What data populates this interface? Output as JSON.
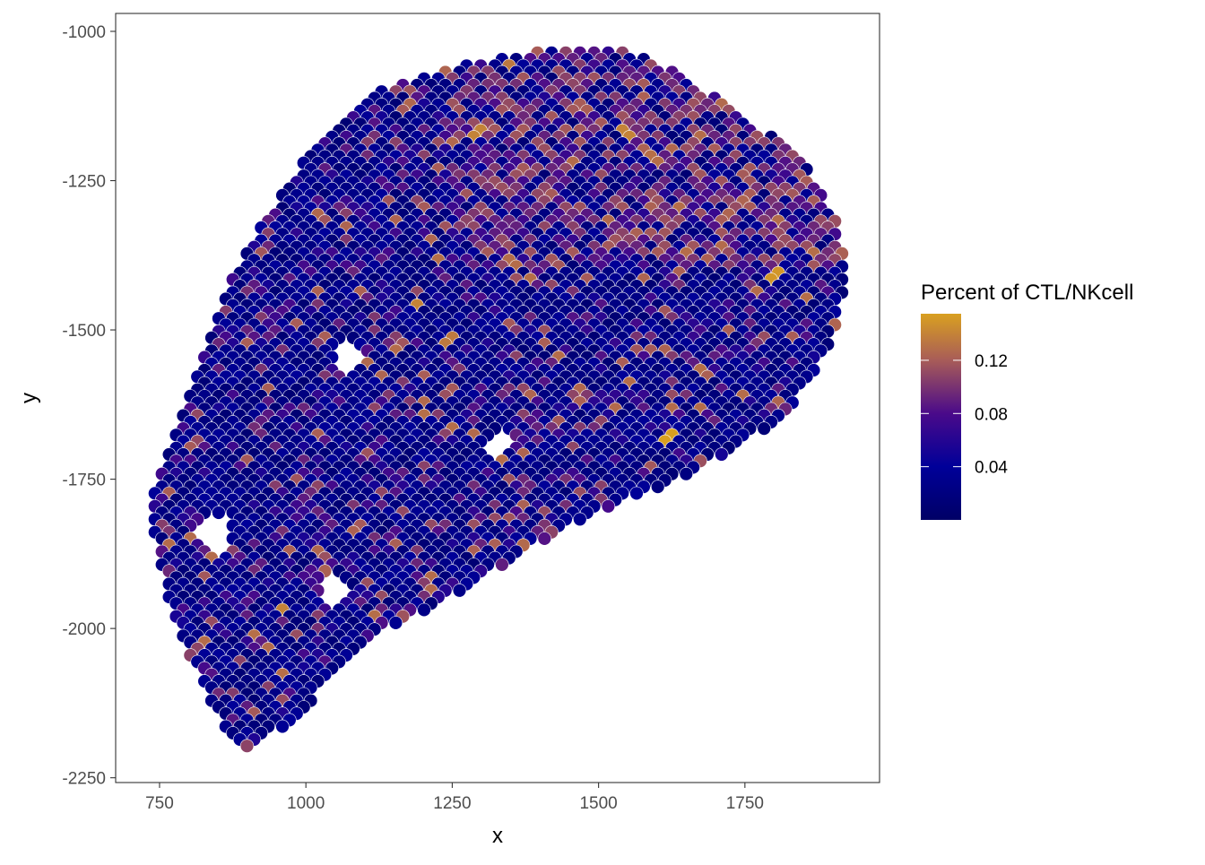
{
  "chart_data": {
    "type": "scatter",
    "xlabel": "x",
    "ylabel": "y",
    "xlim": [
      675,
      1980
    ],
    "ylim": [
      -2258,
      -970
    ],
    "x_ticks": [
      750,
      1000,
      1250,
      1500,
      1750
    ],
    "x_tick_labels": [
      "750",
      "1000",
      "1250",
      "1500",
      "1750"
    ],
    "y_ticks": [
      -1000,
      -1250,
      -1500,
      -1750,
      -2000,
      -2250
    ],
    "y_tick_labels": [
      "-1000",
      "-1250",
      "-1500",
      "-1750",
      "-2000",
      "-2250"
    ],
    "grid": false,
    "legend": {
      "title": "Percent of CTL/NKcell",
      "position": "right",
      "type": "colorbar",
      "range": [
        0.0,
        0.155
      ],
      "ticks": [
        0.04,
        0.08,
        0.12
      ],
      "tick_labels": [
        "0.04",
        "0.08",
        "0.12"
      ],
      "color_stops": [
        {
          "value": 0.0,
          "color": "#000066"
        },
        {
          "value": 0.04,
          "color": "#000099"
        },
        {
          "value": 0.08,
          "color": "#4a0a8a"
        },
        {
          "value": 0.12,
          "color": "#a85c58"
        },
        {
          "value": 0.155,
          "color": "#d9a020"
        }
      ]
    },
    "spot_grid": {
      "x_step": 12.1,
      "y_step": 21.7,
      "row_offset": 12.1
    },
    "points_summary": {
      "count_approx": 1500,
      "x_range": [
        737,
        1920
      ],
      "y_range": [
        -2200,
        -1025
      ],
      "note_clusters": [
        {
          "x": 1620,
          "y": -1680,
          "value": 0.155
        },
        {
          "x": 1800,
          "y": -1405,
          "value": 0.15
        },
        {
          "x": 1195,
          "y": -1460,
          "value": 0.14
        },
        {
          "x": 1345,
          "y": -1055,
          "value": 0.135
        },
        {
          "x": 1295,
          "y": -1170,
          "value": 0.14
        },
        {
          "x": 960,
          "y": -1970,
          "value": 0.14
        },
        {
          "x": 1245,
          "y": -1520,
          "value": 0.135
        },
        {
          "x": 1545,
          "y": -1170,
          "value": 0.14
        },
        {
          "x": 1500,
          "y": -1025,
          "value": 0.12
        }
      ]
    }
  }
}
